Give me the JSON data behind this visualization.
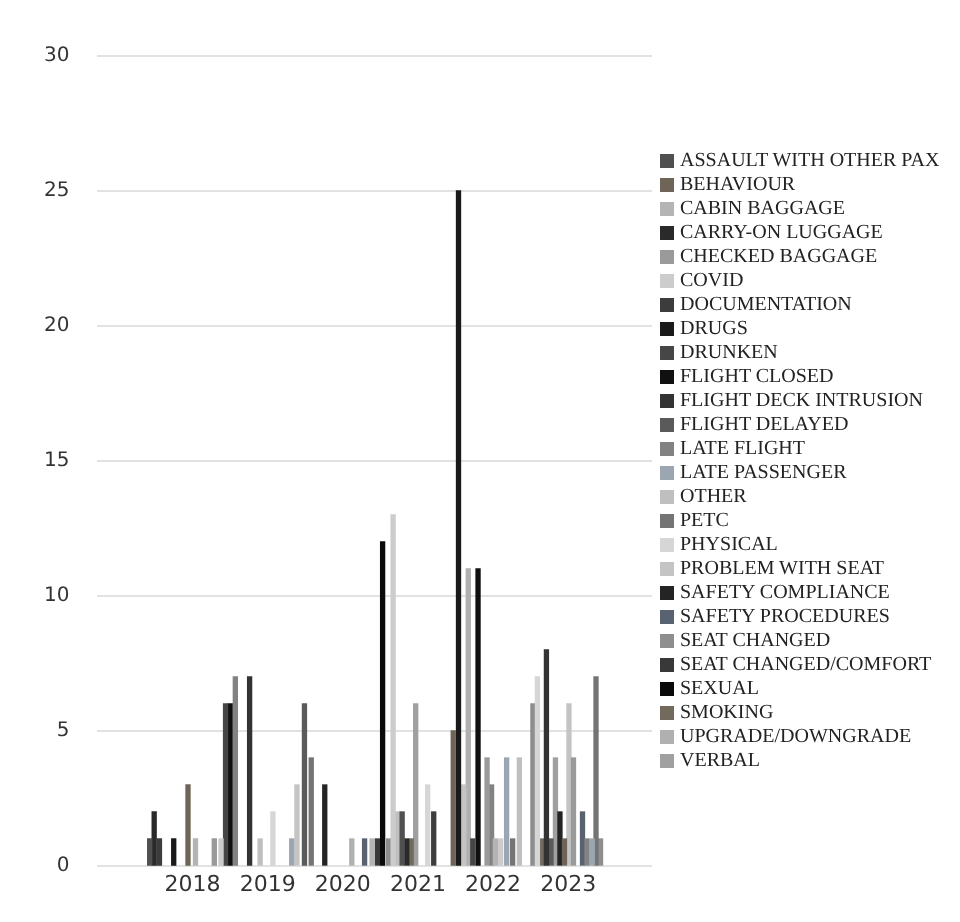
{
  "chart_data": {
    "type": "bar",
    "xlim": [
      2017.35,
      2023.5
    ],
    "xticks": [
      2018,
      2019,
      2020,
      2021,
      2022,
      2023
    ],
    "ylim": [
      0,
      30
    ],
    "yticks": [
      0,
      5,
      10,
      15,
      20,
      25,
      30
    ],
    "grid": "y",
    "legend": "right",
    "series": [
      {
        "name": "ASSAULT WITH OTHER PAX",
        "color": "#505050",
        "x": [
          2017.43,
          2020.79
        ],
        "values": [
          1,
          2
        ]
      },
      {
        "name": "BEHAVIOUR",
        "color": "#6e6458",
        "x": [
          2017.94,
          2021.47,
          2022.95
        ],
        "values": [
          3,
          5,
          1
        ]
      },
      {
        "name": "CABIN BAGGAGE",
        "color": "#b4b4b4",
        "x": [
          2018.04,
          2020.39,
          2022.03
        ],
        "values": [
          1,
          1,
          1
        ]
      },
      {
        "name": "CARRY-ON LUGGAGE",
        "color": "#2a2a2a",
        "x": [
          2017.49,
          2020.85
        ],
        "values": [
          2,
          1
        ]
      },
      {
        "name": "CHECKED BAGGAGE",
        "color": "#9a9a9a",
        "x": [
          2018.29,
          2021.92,
          2023.07
        ],
        "values": [
          1,
          4,
          4
        ]
      },
      {
        "name": "COVID",
        "color": "#cccccc",
        "x": [
          2018.38,
          2020.67,
          2022.1
        ],
        "values": [
          1,
          13,
          1
        ]
      },
      {
        "name": "DOCUMENTATION",
        "color": "#3c3c3c",
        "x": [
          2017.56,
          2021.21
        ],
        "values": [
          1,
          2
        ]
      },
      {
        "name": "DRUGS",
        "color": "#1a1a1a",
        "x": [
          2017.75,
          2021.54
        ],
        "values": [
          1,
          25
        ]
      },
      {
        "name": "DRUNKEN",
        "color": "#464646",
        "x": [
          2018.44,
          2021.73
        ],
        "values": [
          6,
          1
        ]
      },
      {
        "name": "FLIGHT CLOSED",
        "color": "#101010",
        "x": [
          2018.5,
          2021.8
        ],
        "values": [
          6,
          11
        ]
      },
      {
        "name": "FLIGHT DECK INTRUSION",
        "color": "#333333",
        "x": [
          2018.76,
          2022.71
        ],
        "values": [
          7,
          8
        ]
      },
      {
        "name": "FLIGHT DELAYED",
        "color": "#5a5a5a",
        "x": [
          2019.49,
          2022.77
        ],
        "values": [
          6,
          1
        ]
      },
      {
        "name": "LATE FLIGHT",
        "color": "#828282",
        "x": [
          2018.57,
          2021.98,
          2023.25
        ],
        "values": [
          7,
          3,
          1
        ]
      },
      {
        "name": "LATE PASSENGER",
        "color": "#9ca6b0",
        "x": [
          2019.32,
          2022.18,
          2023.32
        ],
        "values": [
          1,
          4,
          1
        ]
      },
      {
        "name": "OTHER",
        "color": "#bfbfbf",
        "x": [
          2018.9,
          2020.73,
          2022.35
        ],
        "values": [
          1,
          2,
          4
        ]
      },
      {
        "name": "PETC",
        "color": "#747474",
        "x": [
          2019.58,
          2022.26,
          2023.37
        ],
        "values": [
          4,
          1,
          7
        ]
      },
      {
        "name": "PHYSICAL",
        "color": "#d6d6d6",
        "x": [
          2019.07,
          2021.13,
          2022.59
        ],
        "values": [
          2,
          3,
          7
        ]
      },
      {
        "name": "PROBLEM WITH SEAT",
        "color": "#c4c4c4",
        "x": [
          2019.39,
          2021.61,
          2023.01
        ],
        "values": [
          3,
          3,
          6
        ]
      },
      {
        "name": "SAFETY COMPLIANCE",
        "color": "#242424",
        "x": [
          2019.76,
          2022.89
        ],
        "values": [
          3,
          2
        ]
      },
      {
        "name": "SAFETY PROCEDURES",
        "color": "#586270",
        "x": [
          2020.29,
          2023.19
        ],
        "values": [
          1,
          2
        ]
      },
      {
        "name": "SEAT CHANGED",
        "color": "#8e8e8e",
        "x": [
          2020.61,
          2022.53,
          2023.43
        ],
        "values": [
          1,
          6,
          1
        ]
      },
      {
        "name": "SEAT CHANGED/COMFORT",
        "color": "#383838",
        "x": [
          2020.46
        ],
        "values": [
          1
        ]
      },
      {
        "name": "SEXUAL",
        "color": "#0a0a0a",
        "x": [
          2020.53
        ],
        "values": [
          12
        ]
      },
      {
        "name": "SMOKING",
        "color": "#726a5c",
        "x": [
          2020.91,
          2022.66
        ],
        "values": [
          1,
          1
        ]
      },
      {
        "name": "UPGRADE/DOWNGRADE",
        "color": "#b0b0b0",
        "x": [
          2020.12,
          2021.67
        ],
        "values": [
          1,
          11
        ]
      },
      {
        "name": "VERBAL",
        "color": "#a0a0a0",
        "x": [
          2020.97,
          2022.83
        ],
        "values": [
          6,
          4
        ]
      }
    ]
  }
}
